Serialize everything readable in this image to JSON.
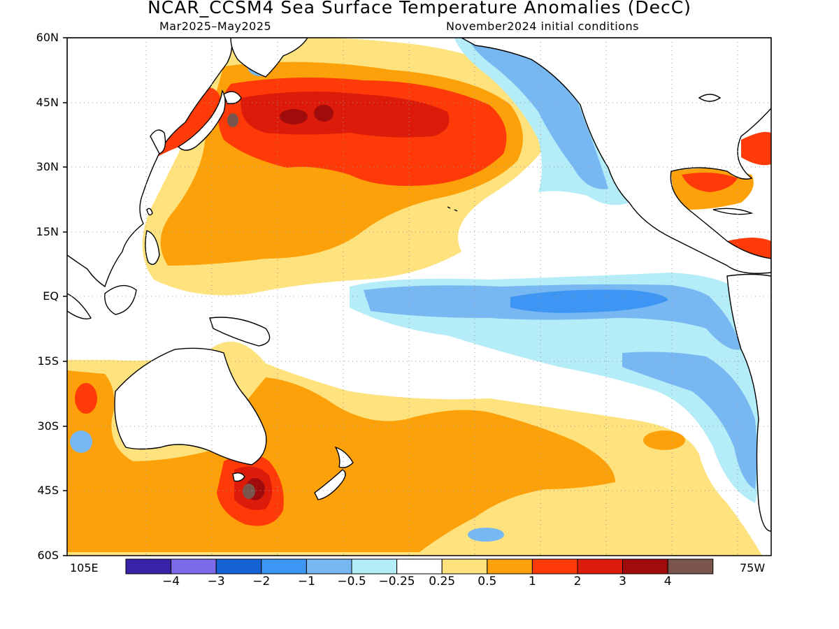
{
  "header": {
    "title": "NCAR_CCSM4 Sea Surface Temperature Anomalies (DecC)",
    "period": "Mar2025–May2025",
    "initial_conditions": "November2024 initial conditions"
  },
  "axes": {
    "lat_labels": [
      "60N",
      "45N",
      "30N",
      "15N",
      "EQ",
      "15S",
      "30S",
      "45S",
      "60S"
    ],
    "lon_labels": [
      "105E",
      "75W"
    ]
  },
  "colorbar": {
    "colors": [
      "#3a22a8",
      "#7c6be8",
      "#1661d4",
      "#3d95f4",
      "#78b8f2",
      "#b4ecf8",
      "#ffffff",
      "#fee27e",
      "#fda10a",
      "#fe3b08",
      "#dd1b0a",
      "#a00b0b",
      "#7a554c"
    ],
    "labels": [
      "-4",
      "-3",
      "-2",
      "-1",
      "-0.5",
      "-0.25",
      "0.25",
      "0.5",
      "1",
      "2",
      "3",
      "4"
    ]
  },
  "map_legend_colors": {
    "neg_strong": "#3d95f4",
    "neg_mid": "#78b8f2",
    "neg_weak": "#b4ecf8",
    "pos_weak": "#fee27e",
    "pos_mid": "#fda10a",
    "pos_high": "#fe3b08",
    "pos_higher": "#dd1b0a",
    "pos_max": "#a00b0b",
    "pos_extreme": "#7a554c"
  }
}
